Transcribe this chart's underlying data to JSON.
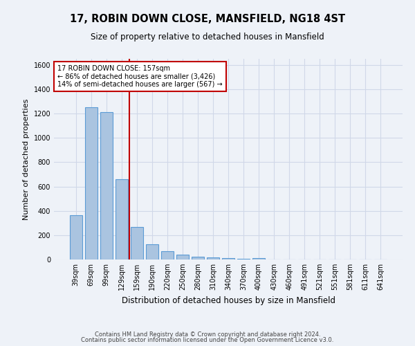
{
  "title": "17, ROBIN DOWN CLOSE, MANSFIELD, NG18 4ST",
  "subtitle": "Size of property relative to detached houses in Mansfield",
  "xlabel": "Distribution of detached houses by size in Mansfield",
  "ylabel": "Number of detached properties",
  "footnote1": "Contains HM Land Registry data © Crown copyright and database right 2024.",
  "footnote2": "Contains public sector information licensed under the Open Government Licence v3.0.",
  "bar_labels": [
    "39sqm",
    "69sqm",
    "99sqm",
    "129sqm",
    "159sqm",
    "190sqm",
    "220sqm",
    "250sqm",
    "280sqm",
    "310sqm",
    "340sqm",
    "370sqm",
    "400sqm",
    "430sqm",
    "460sqm",
    "491sqm",
    "521sqm",
    "551sqm",
    "581sqm",
    "611sqm",
    "641sqm"
  ],
  "bar_values": [
    365,
    1250,
    1210,
    660,
    265,
    125,
    70,
    38,
    25,
    15,
    13,
    8,
    10,
    0,
    0,
    0,
    0,
    0,
    0,
    0,
    0
  ],
  "bar_color": "#aac4e0",
  "bar_edge_color": "#5b9bd5",
  "grid_color": "#d0d8e8",
  "bg_color": "#eef2f8",
  "vline_color": "#c00000",
  "annotation_text": "17 ROBIN DOWN CLOSE: 157sqm\n← 86% of detached houses are smaller (3,426)\n14% of semi-detached houses are larger (567) →",
  "annotation_box_color": "#ffffff",
  "annotation_box_edge": "#c00000",
  "ylim": [
    0,
    1650
  ],
  "yticks": [
    0,
    200,
    400,
    600,
    800,
    1000,
    1200,
    1400,
    1600
  ]
}
